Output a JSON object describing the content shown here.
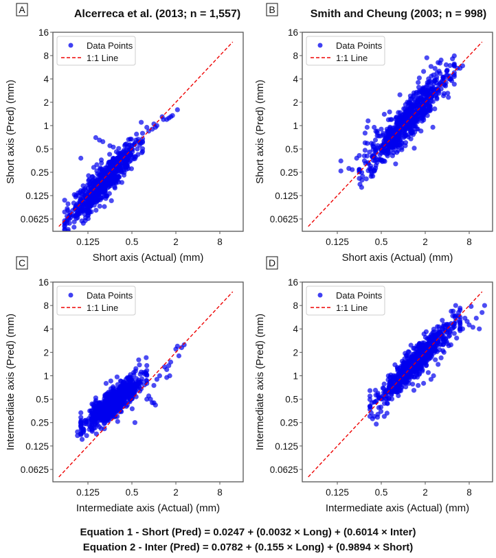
{
  "figure": {
    "equations": [
      "Equation 1 - Short (Pred) = 0.0247 + (0.0032 × Long) + (0.6014 × Inter)",
      "Equation 2 - Inter (Pred) = 0.0782 + (0.155 × Long) + (0.9894 × Short)"
    ],
    "colors": {
      "points": "#0000ee",
      "line": "#ee0000",
      "frame": "#555555"
    }
  },
  "chart_data": [
    {
      "type": "scatter",
      "panel": "A",
      "title": "Alcerreca et al. (2013; n = 1,557)",
      "xlabel": "Short axis (Actual) (mm)",
      "ylabel": "Short axis (Pred) (mm)",
      "xscale": "log2",
      "yscale": "log2",
      "xlim": [
        0.04,
        16
      ],
      "ylim": [
        0.045,
        16
      ],
      "xticks": [
        "0.125",
        "0.5",
        "2",
        "8"
      ],
      "yticks": [
        "16",
        "8",
        "4",
        "2",
        "1",
        "0.5",
        "0.25",
        "0.125",
        "0.0625"
      ],
      "legend": {
        "position": "top-left",
        "entries": [
          "Data Points",
          "1:1 Line"
        ]
      },
      "reference_line": {
        "label": "1:1 Line",
        "from": 0.05,
        "to": 12
      },
      "cloud": {
        "n": 1557,
        "x_range": [
          0.06,
          0.7
        ],
        "slope": 1.0,
        "offset": 0.0,
        "spread": 0.35,
        "skew_below": 0.3
      },
      "outliers": [
        [
          0.065,
          0.085
        ],
        [
          0.07,
          0.075
        ],
        [
          0.08,
          0.1
        ],
        [
          0.09,
          0.07
        ],
        [
          0.085,
          0.12
        ],
        [
          0.1,
          0.145
        ],
        [
          0.1,
          0.38
        ],
        [
          0.13,
          0.2
        ],
        [
          0.15,
          0.16
        ],
        [
          0.16,
          0.7
        ],
        [
          0.18,
          0.65
        ],
        [
          0.2,
          0.62
        ],
        [
          0.25,
          0.55
        ],
        [
          0.42,
          0.58
        ],
        [
          0.5,
          0.55
        ],
        [
          0.55,
          0.6
        ],
        [
          0.85,
          0.85
        ],
        [
          0.8,
          0.95
        ],
        [
          0.95,
          0.9
        ],
        [
          1.05,
          0.95
        ],
        [
          1.1,
          1.0
        ],
        [
          1.0,
          1.05
        ],
        [
          1.35,
          1.2
        ],
        [
          1.5,
          1.2
        ],
        [
          1.3,
          1.3
        ],
        [
          1.6,
          1.25
        ],
        [
          1.7,
          1.3
        ],
        [
          2.1,
          1.6
        ],
        [
          1.8,
          1.35
        ]
      ]
    },
    {
      "type": "scatter",
      "panel": "B",
      "title": "Smith and Cheung (2003; n = 998)",
      "xlabel": "Short axis (Actual) (mm)",
      "ylabel": "Short axis (Pred) (mm)",
      "xscale": "log2",
      "yscale": "log2",
      "xlim": [
        0.04,
        16
      ],
      "ylim": [
        0.045,
        16
      ],
      "xticks": [
        "0.125",
        "0.5",
        "2",
        "8"
      ],
      "yticks": [
        "16",
        "8",
        "4",
        "2",
        "1",
        "0.5",
        "0.25",
        "0.125",
        "0.0625"
      ],
      "legend": {
        "position": "top-left",
        "entries": [
          "Data Points",
          "1:1 Line"
        ]
      },
      "reference_line": {
        "label": "1:1 Line",
        "from": 0.05,
        "to": 12
      },
      "cloud": {
        "n": 998,
        "x_range": [
          0.25,
          5
        ],
        "slope": 1.0,
        "offset": 0.0,
        "spread": 0.4,
        "skew_below": 0.0
      },
      "outliers": [
        [
          0.14,
          0.26
        ],
        [
          0.14,
          0.35
        ],
        [
          0.18,
          0.28
        ],
        [
          0.2,
          0.27
        ],
        [
          0.23,
          0.38
        ],
        [
          0.3,
          0.48
        ],
        [
          0.3,
          0.8
        ],
        [
          0.3,
          0.6
        ],
        [
          0.32,
          0.95
        ],
        [
          0.33,
          1.15
        ],
        [
          0.4,
          0.95
        ],
        [
          0.44,
          0.85
        ],
        [
          0.5,
          0.9
        ],
        [
          0.55,
          1.4
        ],
        [
          0.6,
          0.9
        ],
        [
          0.65,
          1.5
        ],
        [
          0.9,
          2.5
        ],
        [
          1.2,
          2.0
        ],
        [
          1.3,
          2.2
        ],
        [
          1.5,
          2.6
        ],
        [
          1.6,
          3.6
        ],
        [
          1.9,
          5.0
        ],
        [
          2.1,
          7.5
        ],
        [
          2.4,
          5.8
        ],
        [
          2.6,
          4.5
        ],
        [
          3.0,
          6.5
        ],
        [
          3.3,
          7.0
        ],
        [
          3.5,
          4.2
        ],
        [
          4.0,
          5.2
        ],
        [
          4.5,
          4.0
        ],
        [
          5.5,
          5.5
        ],
        [
          6.0,
          5.5
        ],
        [
          6.5,
          5.9
        ]
      ]
    },
    {
      "type": "scatter",
      "panel": "C",
      "title": "",
      "xlabel": "Intermediate axis (Actual) (mm)",
      "ylabel": "Intermediate axis (Pred) (mm)",
      "xscale": "log2",
      "yscale": "log2",
      "xlim": [
        0.04,
        16
      ],
      "ylim": [
        0.045,
        16
      ],
      "xticks": [
        "0.125",
        "0.5",
        "2",
        "8"
      ],
      "yticks": [
        "16",
        "8",
        "4",
        "2",
        "1",
        "0.5",
        "0.25",
        "0.125",
        "0.0625"
      ],
      "legend": {
        "position": "top-left",
        "entries": [
          "Data Points",
          "1:1 Line"
        ]
      },
      "reference_line": {
        "label": "1:1 Line",
        "from": 0.05,
        "to": 12
      },
      "cloud": {
        "n": 1557,
        "x_range": [
          0.1,
          0.8
        ],
        "slope": 0.72,
        "offset": 0.15,
        "spread": 0.3,
        "skew_below": 0.0
      },
      "outliers": [
        [
          0.09,
          0.17
        ],
        [
          0.09,
          0.19
        ],
        [
          0.1,
          0.18
        ],
        [
          0.11,
          0.2
        ],
        [
          0.12,
          0.17
        ],
        [
          0.55,
          0.25
        ],
        [
          0.62,
          1.6
        ],
        [
          0.8,
          0.5
        ],
        [
          0.85,
          0.55
        ],
        [
          0.9,
          0.5
        ],
        [
          0.95,
          0.45
        ],
        [
          1.0,
          0.45
        ],
        [
          1.05,
          0.42
        ],
        [
          1.0,
          0.75
        ],
        [
          1.1,
          0.9
        ],
        [
          1.2,
          1.0
        ],
        [
          1.4,
          1.3
        ],
        [
          1.5,
          1.2
        ],
        [
          1.6,
          1.35
        ],
        [
          1.65,
          1.0
        ],
        [
          1.5,
          0.95
        ],
        [
          1.7,
          1.5
        ],
        [
          2.0,
          2.2
        ],
        [
          2.1,
          2.4
        ],
        [
          2.2,
          1.8
        ],
        [
          2.4,
          2.3
        ],
        [
          2.6,
          2.5
        ]
      ]
    },
    {
      "type": "scatter",
      "panel": "D",
      "title": "",
      "xlabel": "Intermediate axis (Actual) (mm)",
      "ylabel": "Intermediate axis (Pred) (mm)",
      "xscale": "log2",
      "yscale": "log2",
      "xlim": [
        0.04,
        16
      ],
      "ylim": [
        0.045,
        16
      ],
      "xticks": [
        "0.125",
        "0.5",
        "2",
        "8"
      ],
      "yticks": [
        "16",
        "8",
        "4",
        "2",
        "1",
        "0.5",
        "0.25",
        "0.125",
        "0.0625"
      ],
      "legend": {
        "position": "top-left",
        "entries": [
          "Data Points",
          "1:1 Line"
        ]
      },
      "reference_line": {
        "label": "1:1 Line",
        "from": 0.05,
        "to": 12
      },
      "cloud": {
        "n": 998,
        "x_range": [
          0.35,
          6
        ],
        "slope": 0.92,
        "offset": 0.05,
        "spread": 0.32,
        "skew_below": 0.0
      },
      "outliers": [
        [
          0.35,
          0.3
        ],
        [
          0.38,
          0.28
        ],
        [
          0.4,
          0.3
        ],
        [
          0.45,
          0.32
        ],
        [
          0.55,
          0.3
        ],
        [
          0.6,
          0.33
        ],
        [
          1.4,
          0.65
        ],
        [
          1.6,
          0.75
        ],
        [
          1.9,
          0.8
        ],
        [
          2.2,
          1.1
        ],
        [
          2.4,
          0.9
        ],
        [
          2.6,
          1.0
        ],
        [
          3.0,
          1.4
        ],
        [
          3.3,
          1.7
        ],
        [
          3.5,
          2.1
        ],
        [
          4.0,
          2.6
        ],
        [
          4.5,
          2.5
        ],
        [
          5.0,
          3.5
        ],
        [
          6.0,
          3.8
        ],
        [
          6.5,
          4.0
        ],
        [
          7.0,
          5.5
        ],
        [
          7.5,
          5.0
        ],
        [
          8.0,
          4.5
        ],
        [
          9.0,
          4.2
        ],
        [
          10.0,
          5.5
        ],
        [
          11.0,
          4.0
        ],
        [
          12.0,
          6.5
        ],
        [
          13.0,
          8.0
        ],
        [
          8.5,
          7.8
        ]
      ]
    }
  ]
}
